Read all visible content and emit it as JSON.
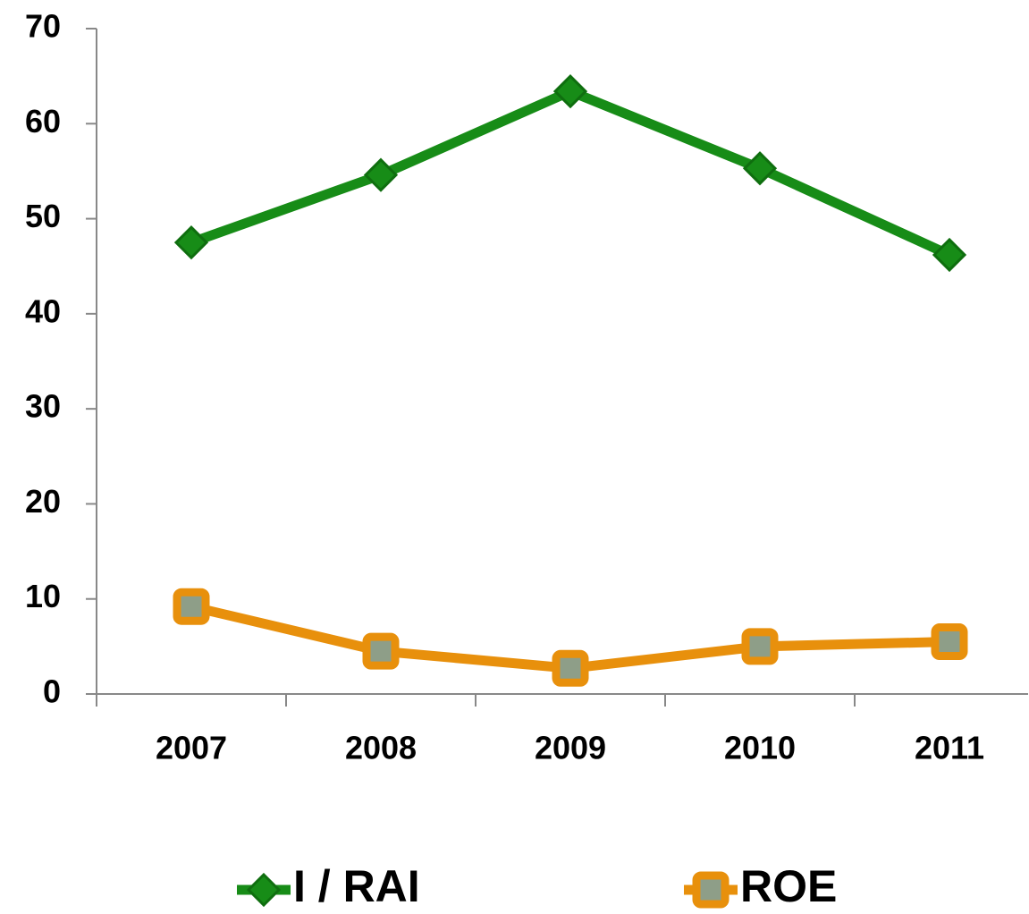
{
  "chart_data": {
    "type": "line",
    "categories": [
      "2007",
      "2008",
      "2009",
      "2010",
      "2011"
    ],
    "series": [
      {
        "name": "I / RAI",
        "color": "#178c17",
        "values": [
          47.5,
          54.6,
          63.4,
          55.3,
          46.2
        ]
      },
      {
        "name": "ROE",
        "color": "#e8900c",
        "values": [
          9.2,
          4.5,
          2.7,
          5.0,
          5.5
        ]
      }
    ],
    "ylim": [
      0,
      70
    ],
    "yticks": [
      0,
      10,
      20,
      30,
      40,
      50,
      60,
      70
    ],
    "grid": false,
    "legend": "bottom"
  }
}
